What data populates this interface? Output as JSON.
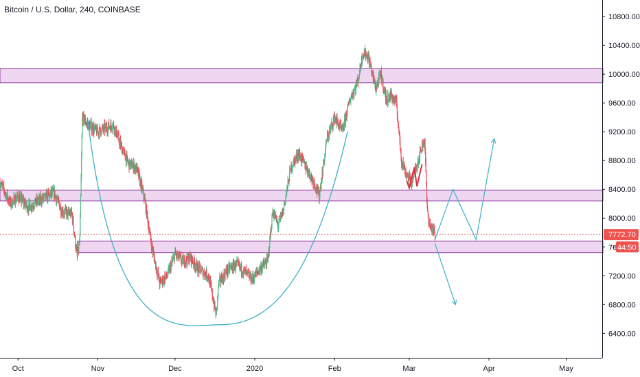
{
  "header": {
    "title": "Bitcoin / U.S. Dollar, 240, COINBASE"
  },
  "colors": {
    "up": "#53b987",
    "down": "#eb4d5c",
    "zone_fill": "#ecd0f0",
    "zone_border": "#8e3c9e",
    "projection": "#3ab0c8",
    "price_label": "#ef5350",
    "axis": "#131722",
    "pattern": "#e03040"
  },
  "chart_data": {
    "type": "candlestick",
    "symbol": "Bitcoin / U.S. Dollar",
    "interval": "240",
    "exchange": "COINBASE",
    "x_ticks": [
      "Oct",
      "Nov",
      "Dec",
      "2020",
      "Feb",
      "Mar",
      "Apr",
      "May"
    ],
    "x_tick_dates": [
      "2019-10-01",
      "2019-11-01",
      "2019-12-01",
      "2020-01-01",
      "2020-02-01",
      "2020-03-01",
      "2020-04-01",
      "2020-05-01"
    ],
    "x_range": [
      "2019-09-24",
      "2020-05-15"
    ],
    "y_ticks": [
      10800,
      10400,
      10000,
      9600,
      9200,
      8800,
      8400,
      8000,
      7600,
      7200,
      6800,
      6400
    ],
    "y_tick_labels": [
      "10800.00",
      "10400.00",
      "10000.00",
      "9600.00",
      "9200.00",
      "8800.00",
      "8400.00",
      "8000.00",
      "7600.00",
      "7200.00",
      "6800.00",
      "6400.00"
    ],
    "y_range": [
      6060,
      11030
    ],
    "last_price": {
      "value": 7772.7,
      "label": "7772.70"
    },
    "countdown_label": "44:50",
    "axis_partial_label": "76",
    "daily_closes": [
      [
        "2019-09-24",
        8500
      ],
      [
        "2019-09-28",
        8200
      ],
      [
        "2019-10-01",
        8300
      ],
      [
        "2019-10-05",
        8150
      ],
      [
        "2019-10-08",
        8220
      ],
      [
        "2019-10-12",
        8300
      ],
      [
        "2019-10-15",
        8350
      ],
      [
        "2019-10-18",
        8100
      ],
      [
        "2019-10-22",
        8050
      ],
      [
        "2019-10-24",
        7450
      ],
      [
        "2019-10-25",
        7700
      ],
      [
        "2019-10-26",
        9400
      ],
      [
        "2019-10-28",
        9300
      ],
      [
        "2019-11-01",
        9200
      ],
      [
        "2019-11-04",
        9250
      ],
      [
        "2019-11-07",
        9300
      ],
      [
        "2019-11-10",
        9000
      ],
      [
        "2019-11-13",
        8750
      ],
      [
        "2019-11-16",
        8700
      ],
      [
        "2019-11-19",
        8300
      ],
      [
        "2019-11-22",
        7600
      ],
      [
        "2019-11-25",
        7100
      ],
      [
        "2019-11-28",
        7200
      ],
      [
        "2019-12-01",
        7500
      ],
      [
        "2019-12-04",
        7400
      ],
      [
        "2019-12-07",
        7450
      ],
      [
        "2019-12-10",
        7300
      ],
      [
        "2019-12-14",
        7200
      ],
      [
        "2019-12-17",
        6650
      ],
      [
        "2019-12-18",
        7100
      ],
      [
        "2019-12-22",
        7300
      ],
      [
        "2019-12-25",
        7350
      ],
      [
        "2019-12-28",
        7250
      ],
      [
        "2019-12-31",
        7150
      ],
      [
        "2020-01-03",
        7300
      ],
      [
        "2020-01-06",
        7400
      ],
      [
        "2020-01-08",
        8100
      ],
      [
        "2020-01-10",
        7900
      ],
      [
        "2020-01-12",
        8100
      ],
      [
        "2020-01-15",
        8700
      ],
      [
        "2020-01-18",
        8900
      ],
      [
        "2020-01-21",
        8700
      ],
      [
        "2020-01-24",
        8500
      ],
      [
        "2020-01-26",
        8300
      ],
      [
        "2020-01-29",
        9100
      ],
      [
        "2020-02-01",
        9400
      ],
      [
        "2020-02-04",
        9200
      ],
      [
        "2020-02-07",
        9650
      ],
      [
        "2020-02-10",
        9900
      ],
      [
        "2020-02-12",
        10300
      ],
      [
        "2020-02-14",
        10250
      ],
      [
        "2020-02-17",
        9800
      ],
      [
        "2020-02-19",
        10000
      ],
      [
        "2020-02-21",
        9650
      ],
      [
        "2020-02-23",
        9700
      ],
      [
        "2020-02-25",
        9600
      ],
      [
        "2020-02-26",
        9200
      ],
      [
        "2020-02-27",
        8800
      ],
      [
        "2020-02-29",
        8600
      ],
      [
        "2020-03-02",
        8500
      ],
      [
        "2020-03-04",
        8750
      ],
      [
        "2020-03-06",
        9000
      ],
      [
        "2020-03-07",
        9100
      ],
      [
        "2020-03-08",
        8100
      ],
      [
        "2020-03-09",
        7900
      ],
      [
        "2020-03-10",
        7850
      ],
      [
        "2020-03-11",
        7772
      ]
    ],
    "zones": [
      {
        "from": 9880,
        "to": 10080
      },
      {
        "from": 8240,
        "to": 8390
      },
      {
        "from": 7520,
        "to": 7680
      }
    ],
    "projection_paths": [
      {
        "points": [
          [
            "2020-03-11",
            7700
          ],
          [
            "2020-03-18",
            8400
          ],
          [
            "2020-03-27",
            7700
          ],
          [
            "2020-04-03",
            9100
          ]
        ]
      },
      {
        "points": [
          [
            "2020-03-11",
            7650
          ],
          [
            "2020-03-19",
            6800
          ]
        ]
      }
    ],
    "cup_curve": {
      "left": [
        "2019-10-28",
        9400
      ],
      "bottom": [
        "2019-12-19",
        6520
      ],
      "right": [
        "2020-02-06",
        9200
      ]
    },
    "double_bottom": [
      [
        "2020-02-29",
        8520
      ],
      [
        "2020-03-01",
        8420
      ],
      [
        "2020-03-02",
        8580
      ],
      [
        "2020-03-03",
        8700
      ],
      [
        "2020-03-04",
        8440
      ],
      [
        "2020-03-05",
        8600
      ],
      [
        "2020-03-06",
        8750
      ]
    ]
  }
}
